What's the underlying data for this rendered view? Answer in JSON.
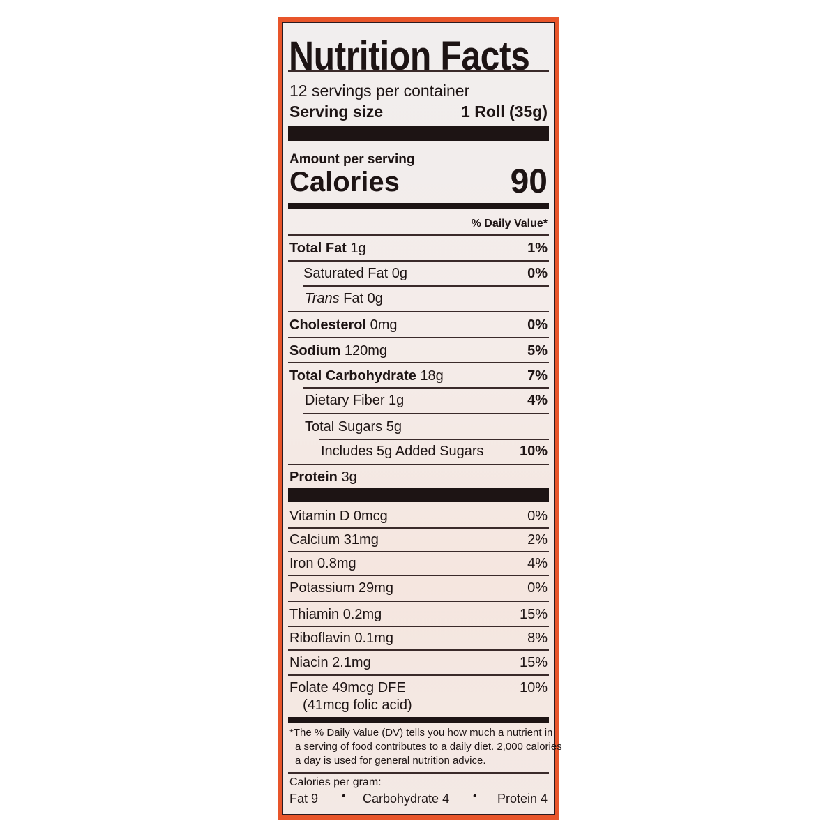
{
  "label": {
    "title": "Nutrition Facts",
    "servings_per_container": "12 servings per container",
    "serving_size_label": "Serving size",
    "serving_size_value": "1 Roll (35g)",
    "amount_per_serving": "Amount per serving",
    "calories_label": "Calories",
    "calories_value": "90",
    "daily_value_header": "% Daily Value*",
    "nutrients": [
      {
        "name": "Total Fat",
        "amount": "1g",
        "dv": "1%"
      },
      {
        "name": "Saturated Fat",
        "amount": "0g",
        "dv": "0%"
      },
      {
        "name": "Trans",
        "name2": "Fat",
        "amount": "0g",
        "dv": ""
      },
      {
        "name": "Cholesterol",
        "amount": "0mg",
        "dv": "0%"
      },
      {
        "name": "Sodium",
        "amount": "120mg",
        "dv": "5%"
      },
      {
        "name": "Total Carbohydrate",
        "amount": "18g",
        "dv": "7%"
      },
      {
        "name": "Dietary Fiber",
        "amount": "1g",
        "dv": "4%"
      },
      {
        "name": "Total Sugars",
        "amount": "5g",
        "dv": ""
      },
      {
        "name": "Includes 5g Added Sugars",
        "amount": "",
        "dv": "10%"
      },
      {
        "name": "Protein",
        "amount": "3g",
        "dv": ""
      }
    ],
    "vitamins": [
      {
        "text": "Vitamin D 0mcg",
        "dv": "0%"
      },
      {
        "text": "Calcium 31mg",
        "dv": "2%"
      },
      {
        "text": "Iron 0.8mg",
        "dv": "4%"
      },
      {
        "text": "Potassium 29mg",
        "dv": "0%"
      },
      {
        "text": "Thiamin 0.2mg",
        "dv": "15%"
      },
      {
        "text": "Riboflavin 0.1mg",
        "dv": "8%"
      },
      {
        "text": "Niacin 2.1mg",
        "dv": "15%"
      },
      {
        "text": "Folate 49mcg DFE",
        "text2": "(41mcg folic acid)",
        "dv": "10%"
      }
    ],
    "footnote": [
      "*The % Daily Value (DV) tells you how much a nutrient in",
      "a serving of food contributes to a daily diet. 2,000 calories",
      "a day is used for general nutrition advice."
    ],
    "calories_per_gram_label": "Calories per gram:",
    "cpg": {
      "fat": "Fat 9",
      "carb": "Carbohydrate 4",
      "protein": "Protein 4",
      "separator": "•"
    }
  },
  "colors": {
    "border": "#e8552a",
    "text": "#1d1414"
  }
}
